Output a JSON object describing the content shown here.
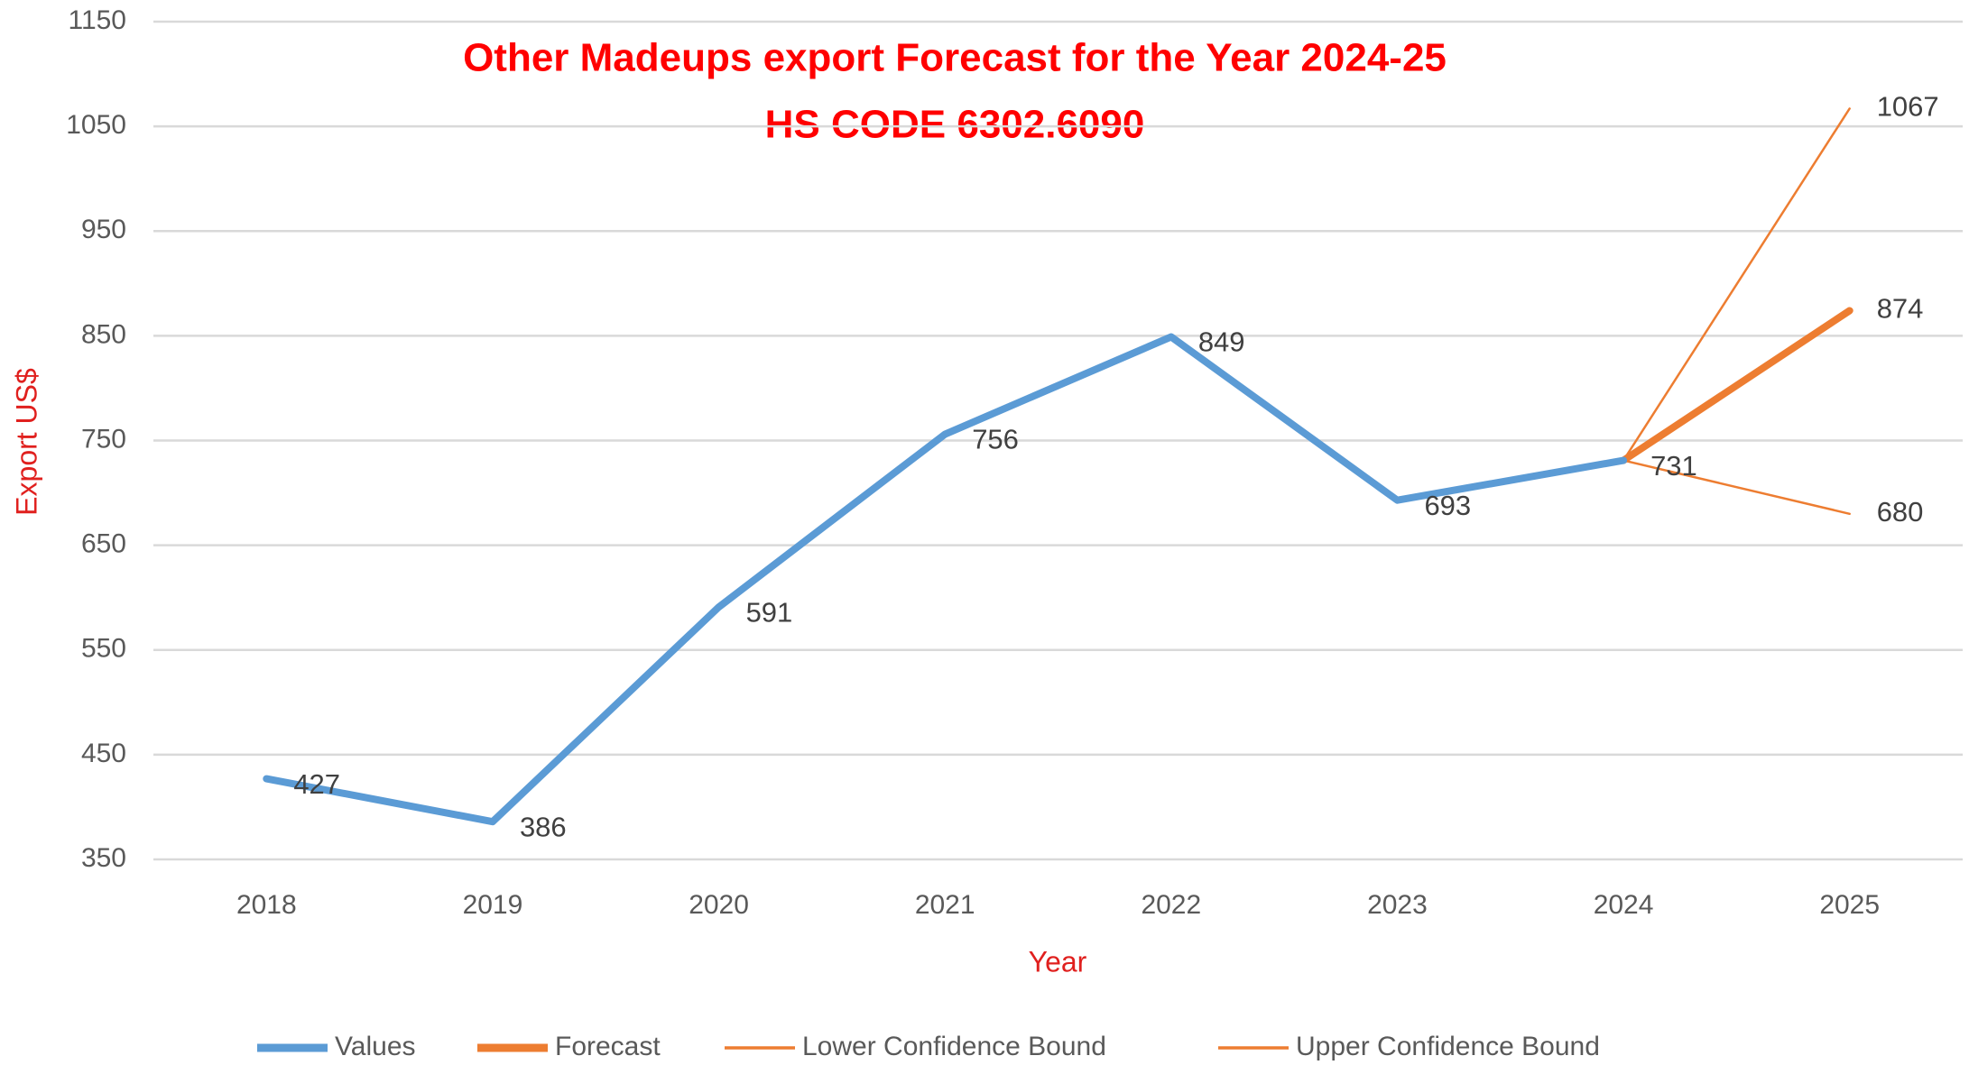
{
  "chart_data": {
    "type": "line",
    "title": "Other Madeups export Forecast for the Year 2024-25",
    "subtitle": "HS CODE 6302.6090",
    "x_label": "Year",
    "y_label": "Export US$",
    "categories": [
      "2018",
      "2019",
      "2020",
      "2021",
      "2022",
      "2023",
      "2024",
      "2025"
    ],
    "series": [
      {
        "name": "Values",
        "color": "#5b9bd5",
        "values": [
          427,
          386,
          591,
          756,
          849,
          693,
          731,
          null
        ]
      },
      {
        "name": "Forecast",
        "color": "#ed7d31",
        "values": [
          null,
          null,
          null,
          null,
          null,
          null,
          731,
          874
        ]
      },
      {
        "name": "Lower Confidence Bound",
        "color": "#ed7d31",
        "values": [
          null,
          null,
          null,
          null,
          null,
          null,
          731,
          680
        ]
      },
      {
        "name": "Upper Confidence Bound",
        "color": "#ed7d31",
        "values": [
          null,
          null,
          null,
          null,
          null,
          null,
          731,
          1067
        ]
      }
    ],
    "ylim": [
      350,
      1150
    ],
    "yticks": [
      350,
      450,
      550,
      650,
      750,
      850,
      950,
      1050,
      1150
    ],
    "grid": true,
    "legend": "bottom"
  }
}
